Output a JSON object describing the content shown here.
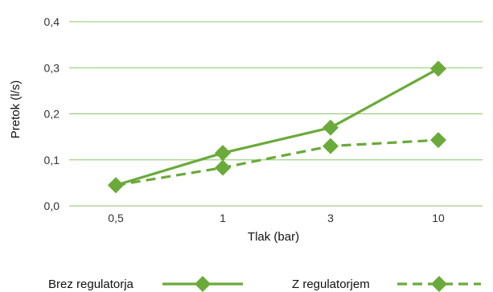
{
  "chart_data": {
    "type": "line",
    "categories": [
      "0,5",
      "1",
      "3",
      "10"
    ],
    "xlabel": "Tlak (bar)",
    "ylabel": "Pretok (l/s)",
    "ylim": [
      0,
      0.4
    ],
    "yticks": [
      "0,0",
      "0,1",
      "0,2",
      "0,3",
      "0,4"
    ],
    "grid": "horizontal",
    "legend_position": "bottom",
    "series": [
      {
        "name": "Brez regulatorja",
        "values": [
          0.045,
          0.115,
          0.17,
          0.298
        ],
        "style": "solid",
        "color": "#6aaa3a"
      },
      {
        "name": "Z regulatorjem",
        "values": [
          0.045,
          0.083,
          0.13,
          0.143
        ],
        "style": "dashed",
        "color": "#6aaa3a"
      }
    ]
  },
  "colors": {
    "grid": "#8cc56a",
    "line": "#6aaa3a"
  }
}
